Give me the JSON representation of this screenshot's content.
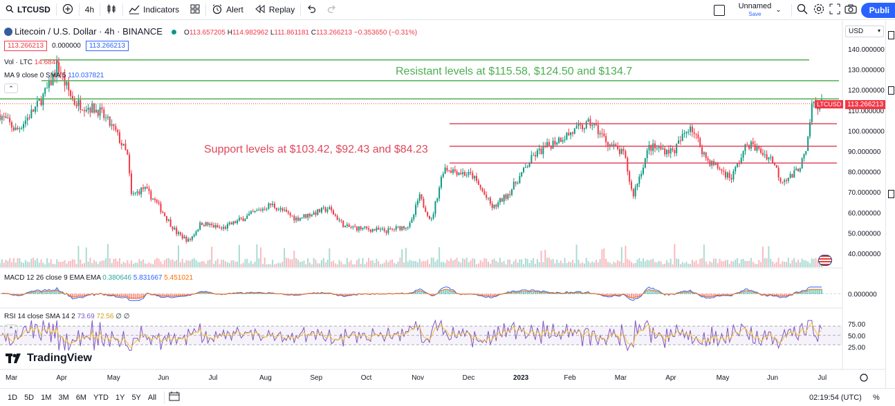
{
  "toolbar": {
    "symbol": "LTCUSD",
    "interval": "4h",
    "indicators_label": "Indicators",
    "alert_label": "Alert",
    "replay_label": "Replay",
    "layout_name": "Unnamed",
    "save_label": "Save",
    "publish_label": "Publi"
  },
  "legend": {
    "title": "Litecoin / U.S. Dollar · 4h · BINANCE",
    "ohlc": {
      "o_label": "O",
      "o": "113.657205",
      "h_label": "H",
      "h": "114.982962",
      "l_label": "L",
      "l": "111.861181",
      "c_label": "C",
      "c": "113.266213",
      "change": "−0.353650 (−0.31%)"
    },
    "bid": "113.266213",
    "spread": "0.000000",
    "ask": "113.266213",
    "vol_label": "Vol · LTC",
    "vol_value": "14.684K",
    "ma_label": "MA 9 close 0 SMA 5",
    "ma_value": "110.037821",
    "macd_label": "MACD 12 26 close 9 EMA EMA",
    "macd_v1": "0.380646",
    "macd_v2": "5.831667",
    "macd_v3": "5.451021",
    "rsi_label": "RSI 14 close SMA 14 2",
    "rsi_v1": "73.69",
    "rsi_v2": "72.56",
    "rsi_v3": "∅ ∅"
  },
  "annotations": {
    "resistant": "Resistant levels at $115.58, $124.50 and $134.7",
    "support": "Support levels at $103.42, $92.43 and $84.23"
  },
  "price_axis": {
    "currency": "USD",
    "ticks": [
      "140.000000",
      "130.000000",
      "120.000000",
      "110.000000",
      "100.000000",
      "90.000000",
      "80.000000",
      "70.000000",
      "60.000000",
      "50.000000",
      "40.000000"
    ],
    "last_symbol": "LTCUSD",
    "last_price": "113.266213",
    "macd_tick": "0.000000",
    "rsi_ticks": [
      "75.00",
      "50.00",
      "25.00"
    ]
  },
  "time_axis": [
    "Mar",
    "Apr",
    "May",
    "Jun",
    "Jul",
    "Aug",
    "Sep",
    "Oct",
    "Nov",
    "Dec",
    "2023",
    "Feb",
    "Mar",
    "Apr",
    "May",
    "Jun",
    "Jul"
  ],
  "ranges": [
    "1D",
    "5D",
    "1M",
    "3M",
    "6M",
    "YTD",
    "1Y",
    "5Y",
    "All"
  ],
  "clock": "02:19:54 (UTC)",
  "percent_label": "%",
  "logo_text": "TradingView",
  "colors": {
    "up": "#089981",
    "down": "#f23645",
    "resistant": "#4caf50",
    "support": "#e0475c",
    "macd": "#2962ff",
    "signal": "#ff6d00",
    "rsi": "#7e57c2",
    "rsi_ma": "#f7c32e"
  },
  "chart_data": {
    "type": "candlestick",
    "symbol": "LTCUSD",
    "interval": "4h",
    "ylim": [
      35,
      145
    ],
    "price_path": [
      {
        "t": 0.0,
        "p": 108
      },
      {
        "t": 0.02,
        "p": 100
      },
      {
        "t": 0.045,
        "p": 112
      },
      {
        "t": 0.06,
        "p": 122
      },
      {
        "t": 0.07,
        "p": 132
      },
      {
        "t": 0.078,
        "p": 124
      },
      {
        "t": 0.09,
        "p": 114
      },
      {
        "t": 0.12,
        "p": 110
      },
      {
        "t": 0.14,
        "p": 100
      },
      {
        "t": 0.155,
        "p": 88
      },
      {
        "t": 0.16,
        "p": 68
      },
      {
        "t": 0.175,
        "p": 72
      },
      {
        "t": 0.19,
        "p": 65
      },
      {
        "t": 0.215,
        "p": 50
      },
      {
        "t": 0.23,
        "p": 46
      },
      {
        "t": 0.245,
        "p": 55
      },
      {
        "t": 0.27,
        "p": 52
      },
      {
        "t": 0.3,
        "p": 58
      },
      {
        "t": 0.33,
        "p": 64
      },
      {
        "t": 0.36,
        "p": 57
      },
      {
        "t": 0.4,
        "p": 62
      },
      {
        "t": 0.42,
        "p": 53
      },
      {
        "t": 0.47,
        "p": 51
      },
      {
        "t": 0.5,
        "p": 54
      },
      {
        "t": 0.51,
        "p": 68
      },
      {
        "t": 0.525,
        "p": 56
      },
      {
        "t": 0.54,
        "p": 82
      },
      {
        "t": 0.575,
        "p": 78
      },
      {
        "t": 0.6,
        "p": 62
      },
      {
        "t": 0.62,
        "p": 70
      },
      {
        "t": 0.65,
        "p": 88
      },
      {
        "t": 0.68,
        "p": 96
      },
      {
        "t": 0.7,
        "p": 100
      },
      {
        "t": 0.72,
        "p": 104
      },
      {
        "t": 0.74,
        "p": 94
      },
      {
        "t": 0.76,
        "p": 88
      },
      {
        "t": 0.77,
        "p": 68
      },
      {
        "t": 0.79,
        "p": 92
      },
      {
        "t": 0.82,
        "p": 90
      },
      {
        "t": 0.84,
        "p": 103
      },
      {
        "t": 0.86,
        "p": 86
      },
      {
        "t": 0.89,
        "p": 77
      },
      {
        "t": 0.91,
        "p": 94
      },
      {
        "t": 0.94,
        "p": 86
      },
      {
        "t": 0.95,
        "p": 76
      },
      {
        "t": 0.965,
        "p": 78
      },
      {
        "t": 0.975,
        "p": 84
      },
      {
        "t": 0.982,
        "p": 90
      },
      {
        "t": 0.988,
        "p": 113
      }
    ],
    "horizontal_lines": [
      {
        "label": "resistant",
        "value": 134.7
      },
      {
        "label": "resistant",
        "value": 124.5
      },
      {
        "label": "resistant",
        "value": 115.58
      },
      {
        "label": "support",
        "value": 103.42
      },
      {
        "label": "support",
        "value": 92.43
      },
      {
        "label": "support",
        "value": 84.23
      }
    ],
    "last_price": 113.266213,
    "rsi_levels": [
      70,
      50,
      30
    ]
  }
}
